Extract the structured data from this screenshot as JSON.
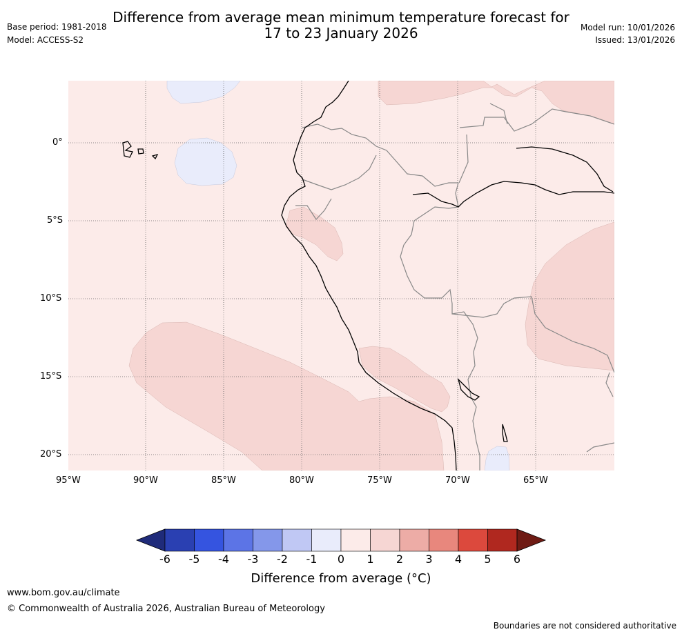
{
  "header": {
    "base_period": "Base period: 1981-2018",
    "model": "Model: ACCESS-S2",
    "title_line1": "Difference from average mean minimum temperature forecast for",
    "title_line2": "17 to 23 January 2026",
    "model_run": "Model run: 10/01/2026",
    "issued": "Issued: 13/01/2026"
  },
  "map": {
    "lat_labels": [
      "0°",
      "5°S",
      "10°S",
      "15°S",
      "20°S"
    ],
    "lon_labels": [
      "95°W",
      "90°W",
      "85°W",
      "80°W",
      "75°W",
      "70°W",
      "65°W"
    ],
    "colors": {
      "ocean_base": "#fcebe9",
      "warm_1_2": "#f6d6d3",
      "cool_0_minus1": "#e9ecfb",
      "coast": "#000000",
      "border": "#888888",
      "grid": "#666666"
    }
  },
  "colorbar": {
    "ticks": [
      "-6",
      "-5",
      "-4",
      "-3",
      "-2",
      "-1",
      "0",
      "1",
      "2",
      "3",
      "4",
      "5",
      "6"
    ],
    "colors": [
      "#1f2b7a",
      "#2a40b2",
      "#3554e0",
      "#5c74e6",
      "#8497ea",
      "#c0c8f4",
      "#e9ecfb",
      "#fcebe9",
      "#f6d6d3",
      "#edaca6",
      "#e8877d",
      "#dc493d",
      "#b0281f",
      "#6f1b14"
    ],
    "label": "Difference from average (°C)"
  },
  "footer": {
    "website": "www.bom.gov.au/climate",
    "copyright": "© Commonwealth of Australia 2026, Australian Bureau of Meteorology",
    "disclaimer": "Boundaries are not considered authoritative"
  }
}
